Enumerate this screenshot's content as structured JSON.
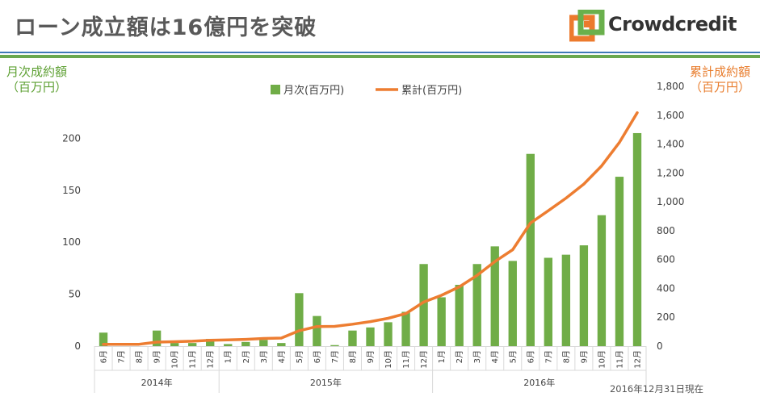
{
  "header": {
    "title": "ローン成立額は16億円を突破",
    "logo_text": "Crowdcredit"
  },
  "footnote": "2016年12月31日現在",
  "colors": {
    "bar": "#70ad47",
    "line": "#ed7d31",
    "left_axis_title": "#5fa135",
    "right_axis_title": "#e87c2c"
  },
  "chart_data": {
    "type": "bar",
    "title": "",
    "left_axis": {
      "title_line1": "月次成約額",
      "title_line2": "（百万円）",
      "ylim": [
        0,
        250
      ],
      "ticks": [
        0,
        50,
        100,
        150,
        200
      ]
    },
    "right_axis": {
      "title_line1": "累計成約額",
      "title_line2": "（百万円）",
      "ylim": [
        0,
        1800
      ],
      "ticks": [
        "0",
        "200",
        "400",
        "600",
        "800",
        "1,000",
        "1,200",
        "1,400",
        "1,600",
        "1,800"
      ]
    },
    "legend": {
      "bar_label": "月次(百万円)",
      "line_label": "累計(百万円)",
      "position": "top"
    },
    "categories": [
      "6月",
      "7月",
      "8月",
      "9月",
      "10月",
      "11月",
      "12月",
      "1月",
      "2月",
      "3月",
      "4月",
      "5月",
      "6月",
      "7月",
      "8月",
      "9月",
      "10月",
      "11月",
      "12月",
      "1月",
      "2月",
      "3月",
      "4月",
      "5月",
      "6月",
      "7月",
      "8月",
      "9月",
      "10月",
      "11月",
      "12月"
    ],
    "years": [
      {
        "label": "2014年",
        "count": 7
      },
      {
        "label": "2015年",
        "count": 12
      },
      {
        "label": "2016年",
        "count": 12
      }
    ],
    "series": [
      {
        "name": "月次(百万円)",
        "kind": "bar",
        "axis": "left",
        "values": [
          13,
          0,
          0,
          15,
          3,
          3,
          7,
          2,
          4,
          6,
          3,
          51,
          29,
          1,
          15,
          18,
          23,
          33,
          79,
          47,
          59,
          79,
          96,
          82,
          185,
          85,
          88,
          97,
          126,
          163,
          205
        ]
      },
      {
        "name": "累計(百万円)",
        "kind": "line",
        "axis": "right",
        "values": [
          13,
          13,
          13,
          28,
          31,
          34,
          41,
          43,
          47,
          53,
          56,
          107,
          136,
          137,
          152,
          170,
          193,
          226,
          305,
          352,
          411,
          490,
          586,
          668,
          853,
          938,
          1026,
          1123,
          1249,
          1412,
          1617
        ]
      }
    ]
  }
}
